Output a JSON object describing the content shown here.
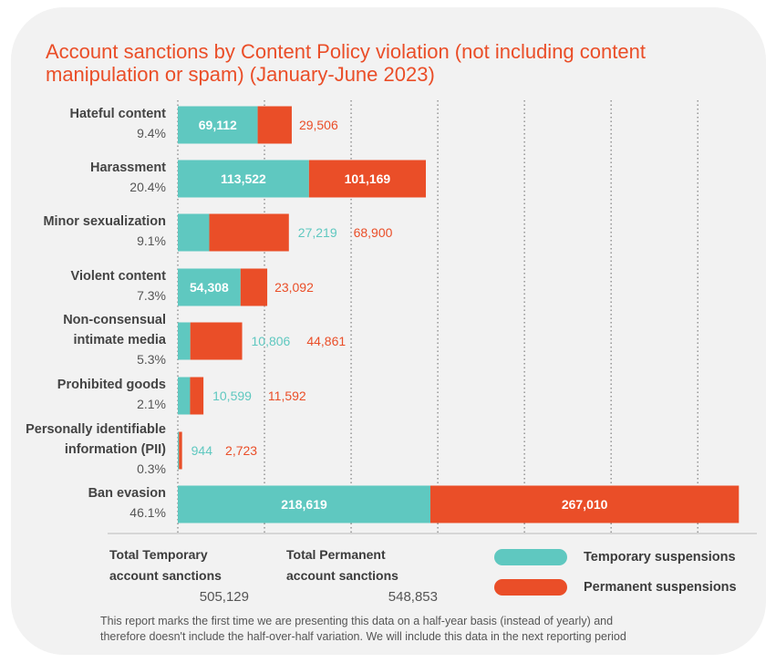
{
  "title": "Account sanctions by Content Policy violation (not including content manipulation or spam) (January-June 2023)",
  "colors": {
    "temporary": "#5fc8c0",
    "permanent": "#ea4e28",
    "label_text": "#444444",
    "background": "#f2f2f2"
  },
  "chart_data": {
    "type": "bar",
    "orientation": "horizontal",
    "stacked": true,
    "title": "Account sanctions by Content Policy violation (not including content manipulation or spam) (January-June 2023)",
    "categories": [
      "Hateful content",
      "Harassment",
      "Minor sexualization",
      "Violent content",
      "Non-consensual intimate media",
      "Prohibited goods",
      "Personally identifiable information (PII)",
      "Ban evasion"
    ],
    "category_lines": [
      [
        "Hateful content"
      ],
      [
        "Harassment"
      ],
      [
        "Minor sexualization"
      ],
      [
        "Violent content"
      ],
      [
        "Non-consensual",
        "intimate media"
      ],
      [
        "Prohibited goods"
      ],
      [
        "Personally identifiable",
        "information (PII)"
      ],
      [
        "Ban evasion"
      ]
    ],
    "percentages": [
      "9.4%",
      "20.4%",
      "9.1%",
      "7.3%",
      "5.3%",
      "2.1%",
      "0.3%",
      "46.1%"
    ],
    "series": [
      {
        "name": "Temporary suspensions",
        "values": [
          69112,
          113522,
          27219,
          54308,
          10806,
          10599,
          944,
          218619
        ],
        "labels": [
          "69,112",
          "113,522",
          "27,219",
          "54,308",
          "10,806",
          "10,599",
          "944",
          "218,619"
        ]
      },
      {
        "name": "Permanent suspensions",
        "values": [
          29506,
          101169,
          68900,
          23092,
          44861,
          11592,
          2723,
          267010
        ],
        "labels": [
          "29,506",
          "101,169",
          "68,900",
          "23,092",
          "44,861",
          "11,592",
          "2,723",
          "267,010"
        ]
      }
    ],
    "xlim": [
      0,
      500000
    ],
    "grid": true,
    "legend_position": "bottom-right"
  },
  "totals": {
    "temporary": {
      "label_line1": "Total Temporary",
      "label_line2": "account sanctions",
      "value": "505,129"
    },
    "permanent": {
      "label_line1": "Total Permanent",
      "label_line2": "account sanctions",
      "value": "548,853"
    }
  },
  "legend": {
    "temporary": "Temporary suspensions",
    "permanent": "Permanent suspensions"
  },
  "footnote": {
    "line1": "This report marks the first time we are presenting this data on a half-year basis (instead of yearly) and",
    "line2": "therefore doesn't include the half-over-half variation. We will include this data in the next reporting period"
  }
}
